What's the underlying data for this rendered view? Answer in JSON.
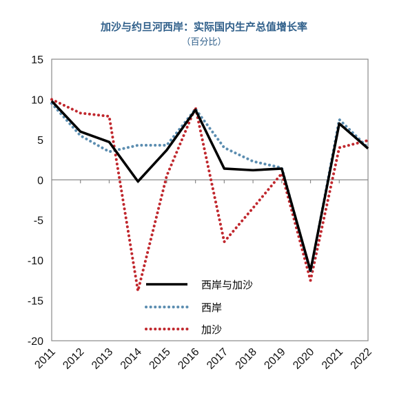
{
  "chart_data": {
    "type": "line",
    "title": "加沙与约旦河西岸：实际国内生产总值增长率",
    "subtitle": "（百分比）",
    "x": [
      "2011",
      "2012",
      "2013",
      "2014",
      "2015",
      "2016",
      "2017",
      "2018",
      "2019",
      "2020",
      "2021",
      "2022"
    ],
    "ylim": [
      -20,
      15
    ],
    "yticks": [
      15,
      10,
      5,
      0,
      -5,
      -10,
      -15,
      -20
    ],
    "grid": false,
    "legend_position": "lower-center",
    "series": [
      {
        "name": "西岸与加沙",
        "values": [
          9.8,
          6.0,
          4.7,
          -0.2,
          3.7,
          8.7,
          1.4,
          1.2,
          1.4,
          -11.3,
          7.0,
          3.9
        ],
        "color": "#000000",
        "style": "solid"
      },
      {
        "name": "西岸",
        "values": [
          9.5,
          5.5,
          3.5,
          4.3,
          4.3,
          8.8,
          4.0,
          2.3,
          1.5,
          -11.5,
          7.5,
          4.0
        ],
        "color": "#5b8db0",
        "style": "dotted"
      },
      {
        "name": "加沙",
        "values": [
          10.0,
          8.3,
          7.9,
          -13.8,
          0.5,
          9.0,
          -7.7,
          -3.5,
          0.8,
          -12.5,
          4.0,
          4.9
        ],
        "color": "#c0282e",
        "style": "dotted"
      }
    ]
  }
}
